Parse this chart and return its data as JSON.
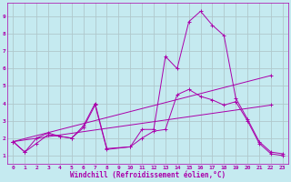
{
  "background_color": "#c5eaf0",
  "grid_color": "#b0c8cc",
  "line_color": "#aa00aa",
  "xlabel": "Windchill (Refroidissement éolien,°C)",
  "xlim": [
    -0.5,
    23.5
  ],
  "ylim": [
    0.5,
    9.8
  ],
  "xticks": [
    0,
    1,
    2,
    3,
    4,
    5,
    6,
    7,
    8,
    9,
    10,
    11,
    12,
    13,
    14,
    15,
    16,
    17,
    18,
    19,
    20,
    21,
    22,
    23
  ],
  "yticks": [
    1,
    2,
    3,
    4,
    5,
    6,
    7,
    8,
    9
  ],
  "series": [
    {
      "x": [
        0,
        1,
        2,
        3,
        4,
        5,
        6,
        7,
        8,
        10,
        11,
        12,
        13,
        14,
        15,
        16,
        17,
        18,
        19,
        20,
        21,
        22,
        23
      ],
      "y": [
        1.8,
        1.2,
        1.7,
        2.2,
        2.1,
        2.0,
        2.7,
        4.0,
        1.4,
        1.5,
        2.5,
        2.5,
        6.7,
        6.0,
        8.7,
        9.3,
        8.5,
        7.9,
        4.3,
        3.1,
        1.8,
        1.2,
        1.1
      ]
    },
    {
      "x": [
        0,
        1,
        2,
        3,
        4,
        5,
        6,
        7,
        8,
        10,
        11,
        12,
        13,
        14,
        15,
        16,
        17,
        18,
        19,
        20,
        21,
        22,
        23
      ],
      "y": [
        1.8,
        1.2,
        2.0,
        2.3,
        2.1,
        2.0,
        2.6,
        3.9,
        1.35,
        1.5,
        2.0,
        2.4,
        2.5,
        4.5,
        4.8,
        4.4,
        4.2,
        3.9,
        4.1,
        3.0,
        1.7,
        1.1,
        1.0
      ]
    },
    {
      "x": [
        0,
        22
      ],
      "y": [
        1.8,
        5.6
      ]
    },
    {
      "x": [
        0,
        22
      ],
      "y": [
        1.8,
        3.9
      ]
    }
  ]
}
